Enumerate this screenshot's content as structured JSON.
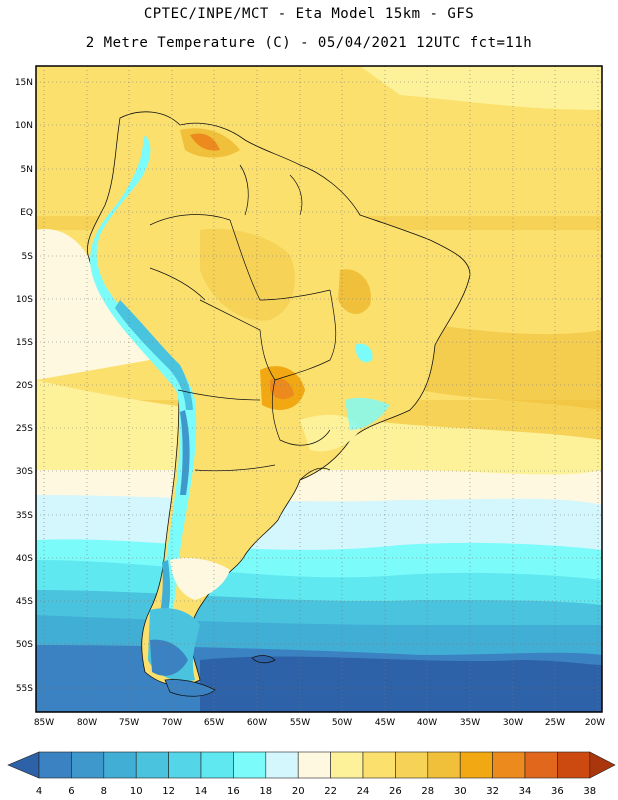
{
  "header": {
    "line1": "CPTEC/INPE/MCT -  Eta Model 15km - GFS",
    "line2": "2 Metre Temperature (C) - 05/04/2021 12UTC fct=11h"
  },
  "map": {
    "lat_labels": [
      "15N",
      "10N",
      "5N",
      "EQ",
      "5S",
      "10S",
      "15S",
      "20S",
      "25S",
      "30S",
      "35S",
      "40S",
      "45S",
      "50S",
      "55S"
    ],
    "lon_labels": [
      "85W",
      "80W",
      "75W",
      "70W",
      "65W",
      "60W",
      "55W",
      "50W",
      "45W",
      "40W",
      "35W",
      "30W",
      "25W",
      "20W"
    ]
  },
  "colorbar": {
    "labels": [
      "4",
      "6",
      "8",
      "10",
      "12",
      "14",
      "16",
      "18",
      "20",
      "22",
      "24",
      "26",
      "28",
      "30",
      "32",
      "34",
      "36",
      "38"
    ],
    "colors": [
      "#2d62a8",
      "#3b82c2",
      "#3f98cc",
      "#41aed6",
      "#4ac3de",
      "#55d5e8",
      "#5fe8ef",
      "#7cfbfb",
      "#d4f6fd",
      "#fef8e0",
      "#fdf199",
      "#fbe06e",
      "#f6d256",
      "#f0c03a",
      "#f2a812",
      "#ec8a1e",
      "#e0671c",
      "#cc4a10",
      "#a9360c"
    ]
  }
}
